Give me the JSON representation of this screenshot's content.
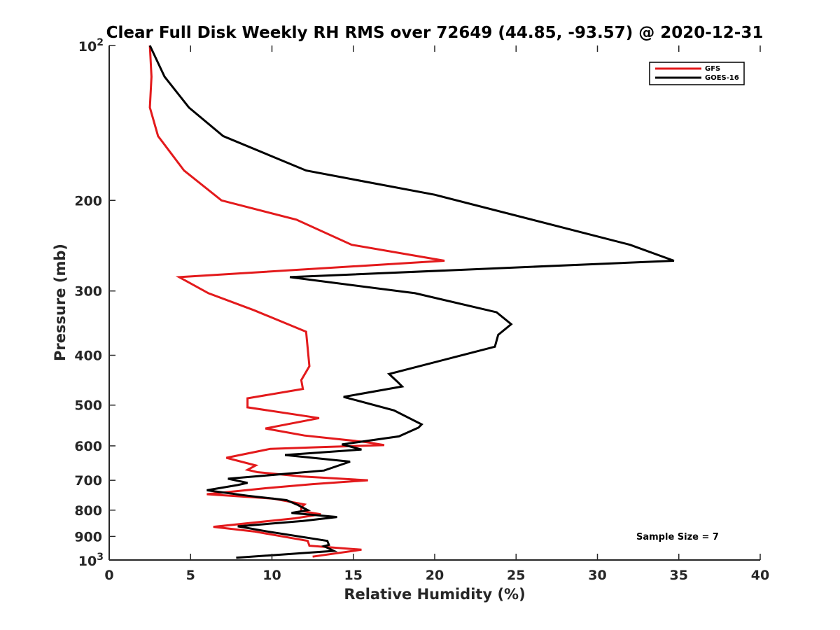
{
  "chart_data": {
    "type": "line",
    "title": "Clear Full Disk Weekly RH RMS over 72649 (44.85, -93.57) @ 2020-12-31",
    "xlabel": "Relative Humidity (%)",
    "ylabel": "Pressure (mb)",
    "xlim": [
      0,
      40
    ],
    "ylim": [
      100,
      1000
    ],
    "y_scale": "log",
    "y_reversed": true,
    "grid": false,
    "legend_position": "top-right",
    "x_ticks": [
      "0",
      "5",
      "10",
      "15",
      "20",
      "25",
      "30",
      "35",
      "40"
    ],
    "y_ticks": [
      {
        "value": 100,
        "base": "10",
        "exp": "2"
      },
      {
        "value": 200,
        "label": "200"
      },
      {
        "value": 300,
        "label": "300"
      },
      {
        "value": 400,
        "label": "400"
      },
      {
        "value": 500,
        "label": "500"
      },
      {
        "value": 600,
        "label": "600"
      },
      {
        "value": 700,
        "label": "700"
      },
      {
        "value": 800,
        "label": "800"
      },
      {
        "value": 900,
        "label": "900"
      },
      {
        "value": 1000,
        "base": "10",
        "exp": "3"
      }
    ],
    "annotation": "Sample Size = 7",
    "series": [
      {
        "name": "GFS",
        "color": "#e31a1c",
        "points": [
          [
            2.5,
            100
          ],
          [
            2.6,
            115
          ],
          [
            2.5,
            132
          ],
          [
            3.0,
            150
          ],
          [
            4.6,
            175
          ],
          [
            6.9,
            200
          ],
          [
            11.5,
            218
          ],
          [
            14.9,
            244
          ],
          [
            20.6,
            262
          ],
          [
            4.3,
            282
          ],
          [
            6.1,
            303
          ],
          [
            8.9,
            327
          ],
          [
            12.1,
            360
          ],
          [
            12.3,
            420
          ],
          [
            11.8,
            447
          ],
          [
            11.9,
            465
          ],
          [
            8.5,
            485
          ],
          [
            8.5,
            505
          ],
          [
            12.9,
            530
          ],
          [
            9.6,
            555
          ],
          [
            12.0,
            573
          ],
          [
            15.8,
            590
          ],
          [
            16.9,
            598
          ],
          [
            13.3,
            603
          ],
          [
            9.9,
            608
          ],
          [
            7.2,
            633
          ],
          [
            9.0,
            655
          ],
          [
            8.5,
            668
          ],
          [
            9.1,
            675
          ],
          [
            11.8,
            688
          ],
          [
            15.9,
            700
          ],
          [
            12.5,
            712
          ],
          [
            9.7,
            725
          ],
          [
            6.0,
            745
          ],
          [
            10.1,
            760
          ],
          [
            12.0,
            780
          ],
          [
            11.8,
            790
          ],
          [
            11.8,
            803
          ],
          [
            13.0,
            815
          ],
          [
            11.4,
            830
          ],
          [
            6.4,
            862
          ],
          [
            8.9,
            880
          ],
          [
            12.2,
            918
          ],
          [
            12.3,
            938
          ],
          [
            15.5,
            955
          ],
          [
            12.5,
            985
          ]
        ]
      },
      {
        "name": "GOES-16",
        "color": "#000000",
        "points": [
          [
            2.5,
            100
          ],
          [
            3.4,
            115
          ],
          [
            4.9,
            132
          ],
          [
            7.0,
            150
          ],
          [
            12.1,
            175
          ],
          [
            20.0,
            195
          ],
          [
            32.0,
            244
          ],
          [
            34.7,
            262
          ],
          [
            11.1,
            282
          ],
          [
            18.8,
            303
          ],
          [
            23.8,
            330
          ],
          [
            24.7,
            348
          ],
          [
            23.9,
            365
          ],
          [
            23.7,
            385
          ],
          [
            17.2,
            435
          ],
          [
            17.7,
            450
          ],
          [
            18.0,
            460
          ],
          [
            14.4,
            482
          ],
          [
            17.5,
            512
          ],
          [
            19.2,
            545
          ],
          [
            19.0,
            553
          ],
          [
            17.8,
            575
          ],
          [
            15.3,
            590
          ],
          [
            14.3,
            596
          ],
          [
            15.5,
            610
          ],
          [
            10.8,
            625
          ],
          [
            14.8,
            644
          ],
          [
            13.2,
            670
          ],
          [
            7.3,
            695
          ],
          [
            8.5,
            708
          ],
          [
            7.9,
            715
          ],
          [
            6.0,
            732
          ],
          [
            8.5,
            750
          ],
          [
            10.9,
            765
          ],
          [
            11.6,
            782
          ],
          [
            12.2,
            800
          ],
          [
            11.2,
            810
          ],
          [
            14.0,
            825
          ],
          [
            11.9,
            840
          ],
          [
            7.9,
            860
          ],
          [
            9.7,
            880
          ],
          [
            13.4,
            918
          ],
          [
            13.5,
            935
          ],
          [
            13.2,
            940
          ],
          [
            13.8,
            960
          ],
          [
            7.8,
            990
          ]
        ]
      }
    ]
  }
}
